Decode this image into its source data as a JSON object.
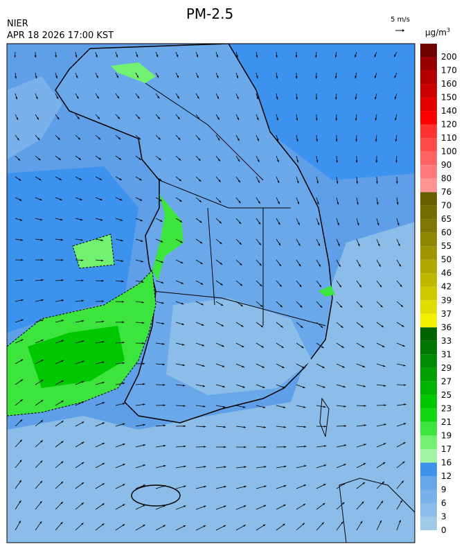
{
  "header": {
    "title": "PM-2.5",
    "agency": "NIER",
    "timestamp": "APR 18 2026 17:00 KST",
    "wind_scale": "5 m/s"
  },
  "legend": {
    "unit": "μg/m",
    "unit_superscript": "3",
    "labels": [
      "0",
      "3",
      "6",
      "9",
      "12",
      "16",
      "17",
      "19",
      "21",
      "23",
      "25",
      "27",
      "29",
      "31",
      "33",
      "36",
      "37",
      "39",
      "42",
      "46",
      "50",
      "55",
      "60",
      "65",
      "70",
      "76",
      "80",
      "90",
      "100",
      "110",
      "120",
      "140",
      "150",
      "160",
      "170",
      "200"
    ],
    "colors": [
      "#9fcbe8",
      "#8cbde9",
      "#7ab1ea",
      "#66a5ec",
      "#3d92ee",
      "#a2f5a2",
      "#72f072",
      "#3ee43e",
      "#10d810",
      "#00c800",
      "#00b400",
      "#00a000",
      "#008c00",
      "#007800",
      "#006400",
      "#f5f000",
      "#e0dc00",
      "#cfc900",
      "#beb800",
      "#aea700",
      "#9e9600",
      "#8e8600",
      "#7e7600",
      "#736c00",
      "#686000",
      "#ff9494",
      "#ff7a7a",
      "#ff6262",
      "#ff4a4a",
      "#ff3232",
      "#ff0000",
      "#e40000",
      "#cc0000",
      "#b40000",
      "#9a0000",
      "#6e0000"
    ]
  }
}
